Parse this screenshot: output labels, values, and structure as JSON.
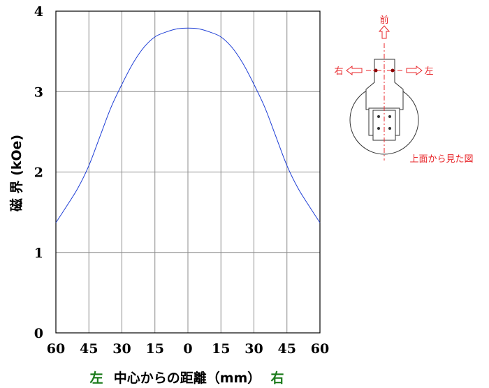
{
  "chart_data": {
    "type": "line",
    "xlabel_left": "左",
    "xlabel_center": "中心からの距離（mm）",
    "xlabel_right": "右",
    "ylabel": "磁 界 (kOe)",
    "x_ticks": [
      -60,
      -45,
      -30,
      -15,
      0,
      15,
      30,
      45,
      60
    ],
    "x_tick_labels": [
      "60",
      "45",
      "30",
      "15",
      "0",
      "15",
      "30",
      "45",
      "60"
    ],
    "y_ticks": [
      0,
      1,
      2,
      3,
      4
    ],
    "y_tick_labels": [
      "0",
      "1",
      "2",
      "3",
      "4"
    ],
    "xlim": [
      -60,
      60
    ],
    "ylim": [
      0,
      4
    ],
    "grid": true,
    "series": [
      {
        "color": "#1f3fd6",
        "x": [
          -60,
          -55,
          -50,
          -45,
          -40,
          -35,
          -30,
          -25,
          -20,
          -15,
          -10,
          -5,
          0,
          5,
          10,
          15,
          20,
          25,
          30,
          35,
          40,
          45,
          50,
          55,
          60
        ],
        "y": [
          1.37,
          1.58,
          1.8,
          2.08,
          2.44,
          2.8,
          3.09,
          3.35,
          3.55,
          3.68,
          3.74,
          3.78,
          3.79,
          3.78,
          3.74,
          3.68,
          3.55,
          3.35,
          3.09,
          2.8,
          2.44,
          2.08,
          1.8,
          1.58,
          1.37
        ]
      }
    ]
  },
  "diagram": {
    "front_label": "前",
    "right_label": "右",
    "left_label": "左",
    "caption": "上面から見た図",
    "accent_color": "#e8262a"
  }
}
